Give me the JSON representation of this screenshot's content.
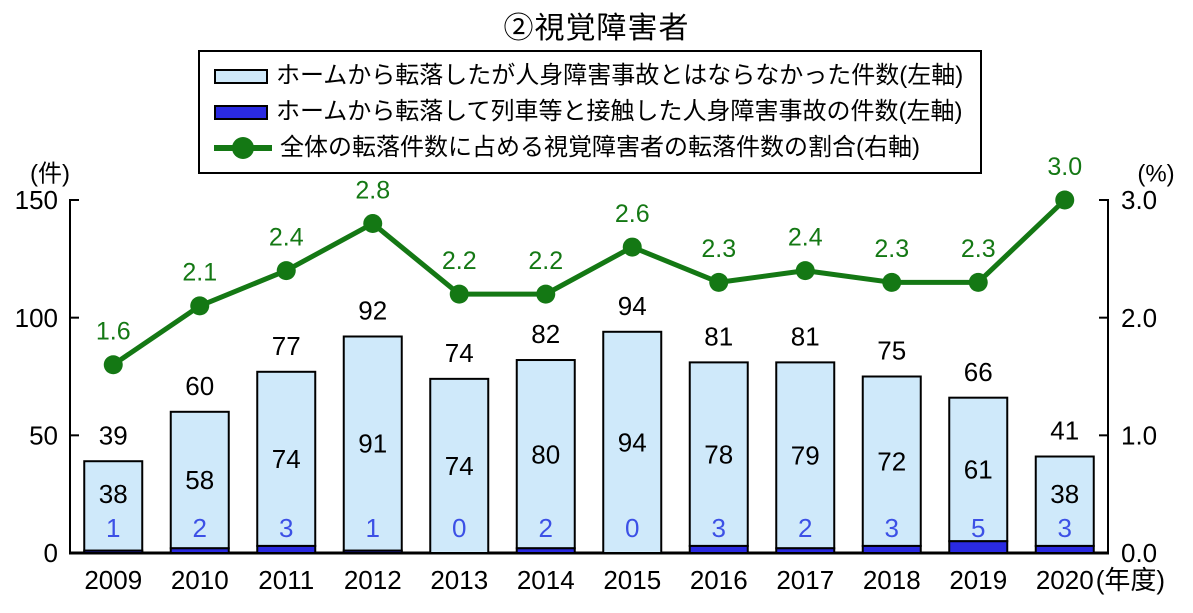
{
  "page": {
    "title": "②視覚障害者",
    "background": "#FFFFFF"
  },
  "legend": {
    "items": [
      {
        "swatch": "light-bar",
        "label": "ホームから転落したが人身障害事故とはならなかった件数(左軸)"
      },
      {
        "swatch": "dark-bar",
        "label": "ホームから転落して列車等と接触した人身障害事故の件数(左軸)"
      },
      {
        "swatch": "line-marker",
        "label": "全体の転落件数に占める視覚障害者の転落件数の割合(右軸)"
      }
    ]
  },
  "axes": {
    "left_unit": "(件)",
    "right_unit": "(%)",
    "left_ticks": [
      0,
      50,
      100,
      150
    ],
    "right_ticks": [
      "0.0",
      "1.0",
      "2.0",
      "3.0"
    ],
    "x_suffix": "(年度)"
  },
  "colors": {
    "light_bar_fill": "#CFE9FA",
    "dark_bar_fill": "#2A2AE2",
    "bar_border": "#000000",
    "line_color": "#147814",
    "total_label": "#000000",
    "light_label": "#000000",
    "dark_label": "#3C50E6",
    "axis": "#000000"
  },
  "chart_data": {
    "type": "bar",
    "subtype": "stacked-bar-with-line",
    "title": "②視覚障害者",
    "categories": [
      "2009",
      "2010",
      "2011",
      "2012",
      "2013",
      "2014",
      "2015",
      "2016",
      "2017",
      "2018",
      "2019",
      "2020"
    ],
    "series": [
      {
        "name": "ホームから転落したが人身障害事故とはならなかった件数(左軸)",
        "type": "bar",
        "axis": "left",
        "values": [
          38,
          58,
          74,
          91,
          74,
          80,
          94,
          78,
          79,
          72,
          61,
          38
        ]
      },
      {
        "name": "ホームから転落して列車等と接触した人身障害事故の件数(左軸)",
        "type": "bar",
        "axis": "left",
        "values": [
          1,
          2,
          3,
          1,
          0,
          2,
          0,
          3,
          2,
          3,
          5,
          3
        ]
      },
      {
        "name": "全体の転落件数に占める視覚障害者の転落件数の割合(右軸)",
        "type": "line",
        "axis": "right",
        "values": [
          1.6,
          2.1,
          2.4,
          2.8,
          2.2,
          2.2,
          2.6,
          2.3,
          2.4,
          2.3,
          2.3,
          3.0
        ]
      }
    ],
    "bar_totals": [
      39,
      60,
      77,
      92,
      74,
      82,
      94,
      81,
      81,
      75,
      66,
      41
    ],
    "xlabel": "(年度)",
    "ylabel_left": "(件)",
    "ylabel_right": "(%)",
    "ylim_left": [
      0,
      150
    ],
    "ylim_right": [
      0.0,
      3.0
    ],
    "grid": false,
    "legend_position": "top"
  }
}
